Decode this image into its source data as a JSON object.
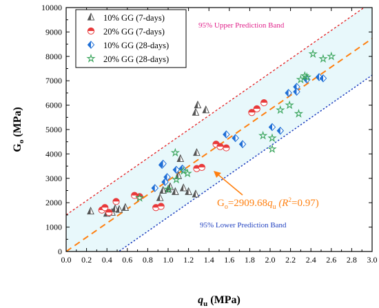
{
  "chart_data": {
    "type": "scatter",
    "xlabel": {
      "main": "q",
      "sub": "u",
      "unit": " (MPa)"
    },
    "ylabel": {
      "main": "G",
      "sub": "o",
      "unit": " (MPa)"
    },
    "xlim": [
      0.0,
      3.0
    ],
    "ylim": [
      0,
      10000
    ],
    "x_ticks": [
      "0.0",
      "0.2",
      "0.4",
      "0.6",
      "0.8",
      "1.0",
      "1.2",
      "1.4",
      "1.6",
      "1.8",
      "2.0",
      "2.2",
      "2.4",
      "2.6",
      "2.8",
      "3.0"
    ],
    "y_ticks": [
      "0",
      "1000",
      "2000",
      "3000",
      "4000",
      "5000",
      "6000",
      "7000",
      "8000",
      "9000",
      "10000"
    ],
    "grid": false,
    "legend_position": "top-left",
    "series": [
      {
        "name": "10% GG (7-days)",
        "marker": "half-triangle",
        "color": "#555555",
        "points": [
          [
            0.24,
            1650
          ],
          [
            0.4,
            1560
          ],
          [
            0.45,
            1600
          ],
          [
            0.48,
            1750
          ],
          [
            0.52,
            1720
          ],
          [
            0.58,
            1800
          ],
          [
            0.92,
            2200
          ],
          [
            0.95,
            2500
          ],
          [
            1.0,
            2550
          ],
          [
            1.02,
            2650
          ],
          [
            1.07,
            2450
          ],
          [
            1.1,
            3100
          ],
          [
            1.12,
            3800
          ],
          [
            1.15,
            2600
          ],
          [
            1.2,
            2450
          ],
          [
            1.27,
            2350
          ],
          [
            1.27,
            5700
          ],
          [
            1.29,
            6000
          ],
          [
            1.28,
            4050
          ],
          [
            1.37,
            5800
          ]
        ]
      },
      {
        "name": "20% GG (7-days)",
        "marker": "half-circle",
        "color": "#e8393a",
        "points": [
          [
            0.35,
            1700
          ],
          [
            0.38,
            1800
          ],
          [
            0.42,
            1600
          ],
          [
            0.49,
            2050
          ],
          [
            0.67,
            2300
          ],
          [
            0.72,
            2250
          ],
          [
            0.88,
            1800
          ],
          [
            0.93,
            1850
          ],
          [
            1.28,
            3400
          ],
          [
            1.33,
            3450
          ],
          [
            1.47,
            4400
          ],
          [
            1.51,
            4300
          ],
          [
            1.57,
            4250
          ],
          [
            1.82,
            5700
          ],
          [
            1.87,
            5850
          ],
          [
            1.94,
            6100
          ]
        ]
      },
      {
        "name": "10% GG (28-days)",
        "marker": "half-diamond",
        "color": "#1f6fd6",
        "points": [
          [
            0.87,
            2600
          ],
          [
            0.94,
            3550
          ],
          [
            0.95,
            3600
          ],
          [
            0.97,
            2850
          ],
          [
            0.99,
            3050
          ],
          [
            1.08,
            3350
          ],
          [
            1.14,
            3400
          ],
          [
            1.57,
            4800
          ],
          [
            1.66,
            4650
          ],
          [
            1.73,
            4400
          ],
          [
            2.02,
            5100
          ],
          [
            2.1,
            4950
          ],
          [
            2.18,
            6500
          ],
          [
            2.26,
            6750
          ],
          [
            2.26,
            6550
          ],
          [
            2.36,
            7050
          ],
          [
            2.48,
            7150
          ],
          [
            2.52,
            7100
          ]
        ]
      },
      {
        "name": "20% GG (28-days)",
        "marker": "star",
        "color": "#3aa55c",
        "points": [
          [
            0.72,
            2200
          ],
          [
            1.0,
            2550
          ],
          [
            1.07,
            4050
          ],
          [
            1.08,
            2950
          ],
          [
            1.15,
            3300
          ],
          [
            1.19,
            3200
          ],
          [
            1.93,
            4750
          ],
          [
            2.02,
            4650
          ],
          [
            2.02,
            4200
          ],
          [
            2.1,
            5800
          ],
          [
            2.19,
            6000
          ],
          [
            2.28,
            5650
          ],
          [
            2.3,
            7050
          ],
          [
            2.34,
            7200
          ],
          [
            2.36,
            7150
          ],
          [
            2.42,
            8100
          ],
          [
            2.52,
            7900
          ],
          [
            2.6,
            8000
          ]
        ]
      }
    ],
    "fit": {
      "slope": 2909.68,
      "label_main": "G",
      "label_sub": "o",
      "label_eq": "=2909.68",
      "label_var": "q",
      "label_var_sub": "u",
      "label_r2": " (R",
      "label_r2_sup": "2",
      "label_r2_val": "=0.97)",
      "color": "#ff7f0e"
    },
    "upper_band": {
      "label": "95% Upper Prediction Band",
      "offset": 1500,
      "color": "#e41a1c"
    },
    "lower_band": {
      "label": "95% Lower Prediction Band",
      "offset": -1500,
      "color": "#1f3fbf"
    },
    "band_fill": "#e8f8fb"
  }
}
